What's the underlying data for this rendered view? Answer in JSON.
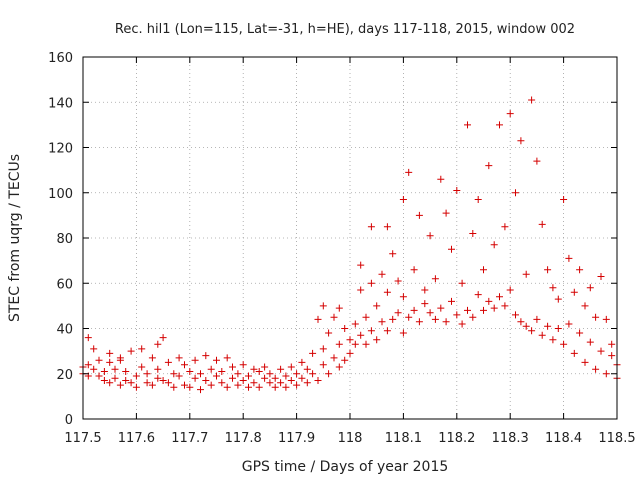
{
  "chart_data": {
    "type": "scatter",
    "title": "Rec. hil1 (Lon=115, Lat=-31, h=HE), days 117-118, 2015, window 002",
    "xlabel": "GPS time / Days of year 2015",
    "ylabel": "STEC from uqrg / TECUs",
    "xlim": [
      117.5,
      118.5
    ],
    "ylim": [
      0,
      160
    ],
    "xticks": [
      "117.5",
      "117.6",
      "117.7",
      "117.8",
      "117.9",
      "118",
      "118.1",
      "118.2",
      "118.3",
      "118.4",
      "118.5"
    ],
    "yticks": [
      "0",
      "20",
      "40",
      "60",
      "80",
      "100",
      "120",
      "140",
      "160"
    ],
    "grid": true,
    "marker": "plus",
    "color": "#d40000",
    "series": [
      {
        "points": [
          [
            117.5,
            20
          ],
          [
            117.5,
            23
          ],
          [
            117.51,
            19
          ],
          [
            117.51,
            36
          ],
          [
            117.51,
            24
          ],
          [
            117.52,
            22
          ],
          [
            117.52,
            31
          ],
          [
            117.53,
            19
          ],
          [
            117.53,
            26
          ],
          [
            117.54,
            17
          ],
          [
            117.54,
            21
          ],
          [
            117.55,
            16
          ],
          [
            117.55,
            25
          ],
          [
            117.55,
            29
          ],
          [
            117.56,
            18
          ],
          [
            117.56,
            22
          ],
          [
            117.57,
            15
          ],
          [
            117.57,
            26
          ],
          [
            117.57,
            27
          ],
          [
            117.58,
            17
          ],
          [
            117.58,
            21
          ],
          [
            117.59,
            16
          ],
          [
            117.59,
            30
          ],
          [
            117.6,
            19
          ],
          [
            117.6,
            14
          ],
          [
            117.61,
            23
          ],
          [
            117.61,
            31
          ],
          [
            117.62,
            16
          ],
          [
            117.62,
            20
          ],
          [
            117.63,
            15
          ],
          [
            117.63,
            27
          ],
          [
            117.64,
            18
          ],
          [
            117.64,
            22
          ],
          [
            117.64,
            33
          ],
          [
            117.65,
            17
          ],
          [
            117.65,
            36
          ],
          [
            117.66,
            16
          ],
          [
            117.66,
            25
          ],
          [
            117.67,
            20
          ],
          [
            117.67,
            14
          ],
          [
            117.68,
            27
          ],
          [
            117.68,
            19
          ],
          [
            117.69,
            15
          ],
          [
            117.69,
            24
          ],
          [
            117.7,
            21
          ],
          [
            117.7,
            14
          ],
          [
            117.71,
            26
          ],
          [
            117.71,
            18
          ],
          [
            117.72,
            13
          ],
          [
            117.72,
            20
          ],
          [
            117.73,
            28
          ],
          [
            117.73,
            17
          ],
          [
            117.74,
            15
          ],
          [
            117.74,
            22
          ],
          [
            117.75,
            19
          ],
          [
            117.75,
            26
          ],
          [
            117.76,
            16
          ],
          [
            117.76,
            21
          ],
          [
            117.77,
            27
          ],
          [
            117.77,
            14
          ],
          [
            117.78,
            23
          ],
          [
            117.78,
            18
          ],
          [
            117.79,
            15
          ],
          [
            117.79,
            20
          ],
          [
            117.8,
            17
          ],
          [
            117.8,
            24
          ],
          [
            117.81,
            19
          ],
          [
            117.81,
            14
          ],
          [
            117.82,
            22
          ],
          [
            117.82,
            16
          ],
          [
            117.83,
            21
          ],
          [
            117.83,
            14
          ],
          [
            117.84,
            18
          ],
          [
            117.84,
            23
          ],
          [
            117.85,
            16
          ],
          [
            117.85,
            20
          ],
          [
            117.86,
            18
          ],
          [
            117.86,
            14
          ],
          [
            117.87,
            22
          ],
          [
            117.87,
            16
          ],
          [
            117.88,
            19
          ],
          [
            117.88,
            14
          ],
          [
            117.89,
            17
          ],
          [
            117.89,
            23
          ],
          [
            117.9,
            15
          ],
          [
            117.9,
            20
          ],
          [
            117.91,
            18
          ],
          [
            117.91,
            25
          ],
          [
            117.92,
            16
          ],
          [
            117.92,
            22
          ],
          [
            117.93,
            20
          ],
          [
            117.93,
            29
          ],
          [
            117.94,
            17
          ],
          [
            117.94,
            44
          ],
          [
            117.95,
            24
          ],
          [
            117.95,
            31
          ],
          [
            117.95,
            50
          ],
          [
            117.96,
            20
          ],
          [
            117.96,
            38
          ],
          [
            117.97,
            45
          ],
          [
            117.97,
            27
          ],
          [
            117.98,
            23
          ],
          [
            117.98,
            33
          ],
          [
            117.98,
            49
          ],
          [
            117.99,
            26
          ],
          [
            117.99,
            40
          ],
          [
            118,
            29
          ],
          [
            118,
            35
          ],
          [
            118.01,
            33
          ],
          [
            118.01,
            42
          ],
          [
            118.02,
            37
          ],
          [
            118.02,
            57
          ],
          [
            118.02,
            68
          ],
          [
            118.03,
            33
          ],
          [
            118.03,
            45
          ],
          [
            118.04,
            39
          ],
          [
            118.04,
            60
          ],
          [
            118.04,
            85
          ],
          [
            118.05,
            35
          ],
          [
            118.05,
            50
          ],
          [
            118.06,
            43
          ],
          [
            118.06,
            64
          ],
          [
            118.07,
            39
          ],
          [
            118.07,
            56
          ],
          [
            118.07,
            85
          ],
          [
            118.08,
            44
          ],
          [
            118.08,
            73
          ],
          [
            118.09,
            47
          ],
          [
            118.09,
            61
          ],
          [
            118.1,
            38
          ],
          [
            118.1,
            97
          ],
          [
            118.1,
            54
          ],
          [
            118.11,
            45
          ],
          [
            118.11,
            109
          ],
          [
            118.12,
            48
          ],
          [
            118.12,
            66
          ],
          [
            118.13,
            43
          ],
          [
            118.13,
            90
          ],
          [
            118.14,
            51
          ],
          [
            118.14,
            57
          ],
          [
            118.15,
            47
          ],
          [
            118.15,
            81
          ],
          [
            118.16,
            44
          ],
          [
            118.16,
            62
          ],
          [
            118.17,
            49
          ],
          [
            118.17,
            106
          ],
          [
            118.18,
            43
          ],
          [
            118.18,
            91
          ],
          [
            118.19,
            52
          ],
          [
            118.19,
            75
          ],
          [
            118.2,
            46
          ],
          [
            118.2,
            101
          ],
          [
            118.21,
            42
          ],
          [
            118.21,
            60
          ],
          [
            118.22,
            48
          ],
          [
            118.22,
            130
          ],
          [
            118.23,
            45
          ],
          [
            118.23,
            82
          ],
          [
            118.24,
            55
          ],
          [
            118.24,
            97
          ],
          [
            118.25,
            48
          ],
          [
            118.25,
            66
          ],
          [
            118.26,
            52
          ],
          [
            118.26,
            112
          ],
          [
            118.27,
            49
          ],
          [
            118.27,
            77
          ],
          [
            118.28,
            54
          ],
          [
            118.28,
            130
          ],
          [
            118.29,
            50
          ],
          [
            118.29,
            85
          ],
          [
            118.3,
            57
          ],
          [
            118.3,
            135
          ],
          [
            118.31,
            46
          ],
          [
            118.31,
            100
          ],
          [
            118.32,
            43
          ],
          [
            118.32,
            123
          ],
          [
            118.33,
            41
          ],
          [
            118.33,
            64
          ],
          [
            118.34,
            39
          ],
          [
            118.34,
            141
          ],
          [
            118.35,
            44
          ],
          [
            118.35,
            114
          ],
          [
            118.36,
            37
          ],
          [
            118.36,
            86
          ],
          [
            118.37,
            41
          ],
          [
            118.37,
            66
          ],
          [
            118.38,
            35
          ],
          [
            118.38,
            58
          ],
          [
            118.39,
            40
          ],
          [
            118.39,
            53
          ],
          [
            118.4,
            33
          ],
          [
            118.4,
            97
          ],
          [
            118.41,
            42
          ],
          [
            118.41,
            71
          ],
          [
            118.42,
            29
          ],
          [
            118.42,
            56
          ],
          [
            118.43,
            38
          ],
          [
            118.43,
            66
          ],
          [
            118.44,
            25
          ],
          [
            118.44,
            50
          ],
          [
            118.45,
            34
          ],
          [
            118.45,
            58
          ],
          [
            118.46,
            22
          ],
          [
            118.46,
            45
          ],
          [
            118.47,
            30
          ],
          [
            118.47,
            63
          ],
          [
            118.48,
            20
          ],
          [
            118.48,
            44
          ],
          [
            118.49,
            28
          ],
          [
            118.49,
            33
          ],
          [
            118.5,
            24
          ],
          [
            118.5,
            18
          ]
        ]
      }
    ]
  }
}
